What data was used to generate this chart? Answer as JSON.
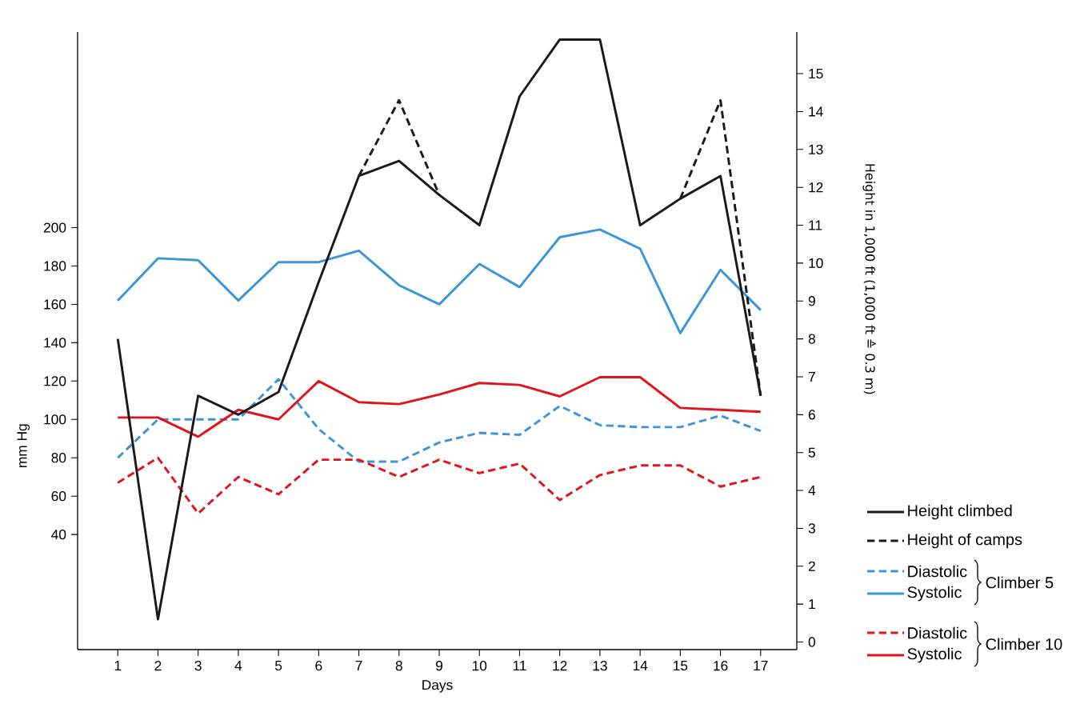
{
  "chart_data": {
    "type": "line",
    "xlabel": "Days",
    "ylabel": "mm Hg",
    "y2label": "Height in 1,000 ft   (1,000 ft ≙ 0.3 m)",
    "x": [
      1,
      2,
      3,
      4,
      5,
      6,
      7,
      8,
      9,
      10,
      11,
      12,
      13,
      14,
      15,
      16,
      17
    ],
    "series": [
      {
        "name": "Height climbed",
        "color": "#1a1a1a",
        "axis": "y2",
        "line_style": "solid",
        "values": [
          8.0,
          0.6,
          6.5,
          6.0,
          6.6,
          9.5,
          12.3,
          12.7,
          11.8,
          11.0,
          14.4,
          15.9,
          15.9,
          11.0,
          11.7,
          12.3,
          6.5
        ]
      },
      {
        "name": "Height of camps",
        "color": "#1a1a1a",
        "axis": "y2",
        "line_style": "dashed",
        "values": [
          null,
          null,
          null,
          null,
          null,
          null,
          12.3,
          14.3,
          11.8,
          null,
          null,
          null,
          null,
          null,
          11.7,
          14.3,
          6.5
        ]
      },
      {
        "name": "Diastolic",
        "color": "#3a96d8",
        "line_style": "dashed",
        "values": [
          80,
          100,
          100,
          100,
          121,
          95,
          78,
          78,
          88,
          93,
          92,
          107,
          97,
          96,
          96,
          102,
          94
        ]
      },
      {
        "name": "Systolic",
        "color": "#3a96d8",
        "line_style": "solid",
        "values": [
          162,
          184,
          183,
          162,
          182,
          182,
          188,
          170,
          160,
          181,
          169,
          195,
          199,
          189,
          145,
          178,
          157
        ]
      },
      {
        "name": "Diastolic",
        "color": "#e0141c",
        "line_style": "dashed",
        "values": [
          67,
          80,
          51,
          70,
          61,
          79,
          79,
          70,
          79,
          72,
          77,
          58,
          71,
          76,
          76,
          65,
          70
        ]
      },
      {
        "name": "Systolic",
        "color": "#e0141c",
        "line_style": "solid",
        "values": [
          101,
          101,
          91,
          105,
          100,
          120,
          109,
          108,
          113,
          119,
          118,
          112,
          122,
          122,
          106,
          105,
          104
        ]
      }
    ],
    "annotations": [
      "Climber 5",
      "Climber 10"
    ],
    "xlim": [
      0,
      17.9
    ],
    "xticks": [
      1,
      2,
      3,
      4,
      5,
      6,
      7,
      8,
      9,
      10,
      11,
      12,
      13,
      14,
      15,
      16,
      17
    ],
    "ylim": [
      -20,
      302
    ],
    "yticks": [
      40,
      60,
      80,
      100,
      120,
      140,
      160,
      180,
      200
    ],
    "y2lim": [
      -0.2,
      16.1
    ],
    "y2ticks": [
      0,
      1,
      2,
      3,
      4,
      5,
      6,
      7,
      8,
      9,
      10,
      11,
      12,
      13,
      14,
      15
    ],
    "legend": "right"
  }
}
